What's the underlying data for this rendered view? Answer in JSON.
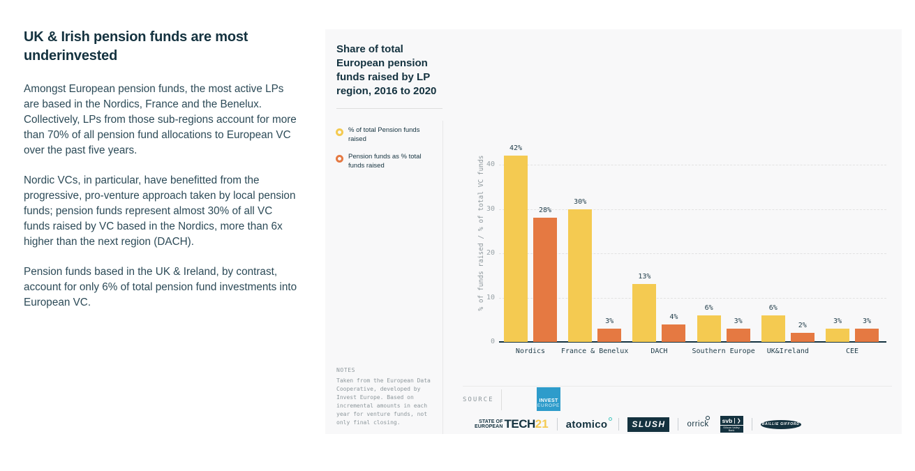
{
  "left": {
    "title": "UK & Irish pension funds are most underinvested",
    "paragraphs": [
      "Amongst European pension funds, the most active LPs are based in the Nordics, France and the Benelux. Collectively, LPs from those sub-regions account for more than 70% of all pension fund allocations to European VC over the past five years.",
      "Nordic VCs, in particular, have benefitted from the progressive, pro-venture approach taken by local pension funds; pension funds represent almost 30% of all VC funds raised by VC based in the Nordics, more than 6x higher than the next region (DACH).",
      "Pension funds based in the UK & Ireland, by contrast, account for only 6% of total pension fund investments into European VC."
    ]
  },
  "panel": {
    "title_lines": [
      "Share of total",
      "European pension",
      "funds raised by LP",
      "region, 2016 to 2020"
    ],
    "legend": [
      {
        "label": "% of total Pension funds raised",
        "color": "#F4CA51"
      },
      {
        "label": "Pension funds as % total funds raised",
        "color": "#E57942"
      }
    ],
    "notes_label": "NOTES",
    "notes": "Taken from the European Data Cooperative, developed by Invest Europe. Based on incremental amounts in each year for venture funds, not only final closing.",
    "source_label": "SOURCE"
  },
  "chart_data": {
    "type": "bar",
    "title": "Share of total European pension funds raised by LP region, 2016 to 2020",
    "categories": [
      "Nordics",
      "France & Benelux",
      "DACH",
      "Southern Europe",
      "UK&Ireland",
      "CEE"
    ],
    "series": [
      {
        "name": "% of total Pension funds raised",
        "color": "#F4CA51",
        "values": [
          42,
          30,
          13,
          6,
          6,
          3
        ]
      },
      {
        "name": "Pension funds as % total funds raised",
        "color": "#E57942",
        "values": [
          28,
          3,
          4,
          3,
          2,
          3
        ]
      }
    ],
    "xlabel": "",
    "ylabel": "% of funds raised / % of total VC funds",
    "ylim": [
      0,
      44
    ],
    "yticks": [
      0,
      10,
      20,
      30,
      40
    ],
    "grid": "dashed horizontal gridlines",
    "legend_position": "left",
    "value_suffix": "%"
  },
  "source": {
    "invest_lines": [
      "INVEST",
      "EUROPE"
    ]
  },
  "logos": {
    "soet_top": "STATE OF",
    "soet_mid": "EUROPEAN",
    "soet_tech": "TECH",
    "soet_year": "21",
    "atomico": "atomico",
    "slush": "SLUSH",
    "orrick": "orrick",
    "svb": "svb",
    "svb_arrow": "❯",
    "svb_sub": "Silicon Valley Bank",
    "baillie": "BAILLIE GIFFORD"
  },
  "colors": {
    "bar_yellow": "#F4CA51",
    "bar_orange": "#E57942",
    "dark_navy": "#14323F",
    "body_text": "#2C4A57",
    "panel_bg": "#F8F8F9",
    "muted_gray": "#8D979C",
    "invest_blue": "#2E9CCB",
    "atomico_teal": "#43C6BE"
  }
}
